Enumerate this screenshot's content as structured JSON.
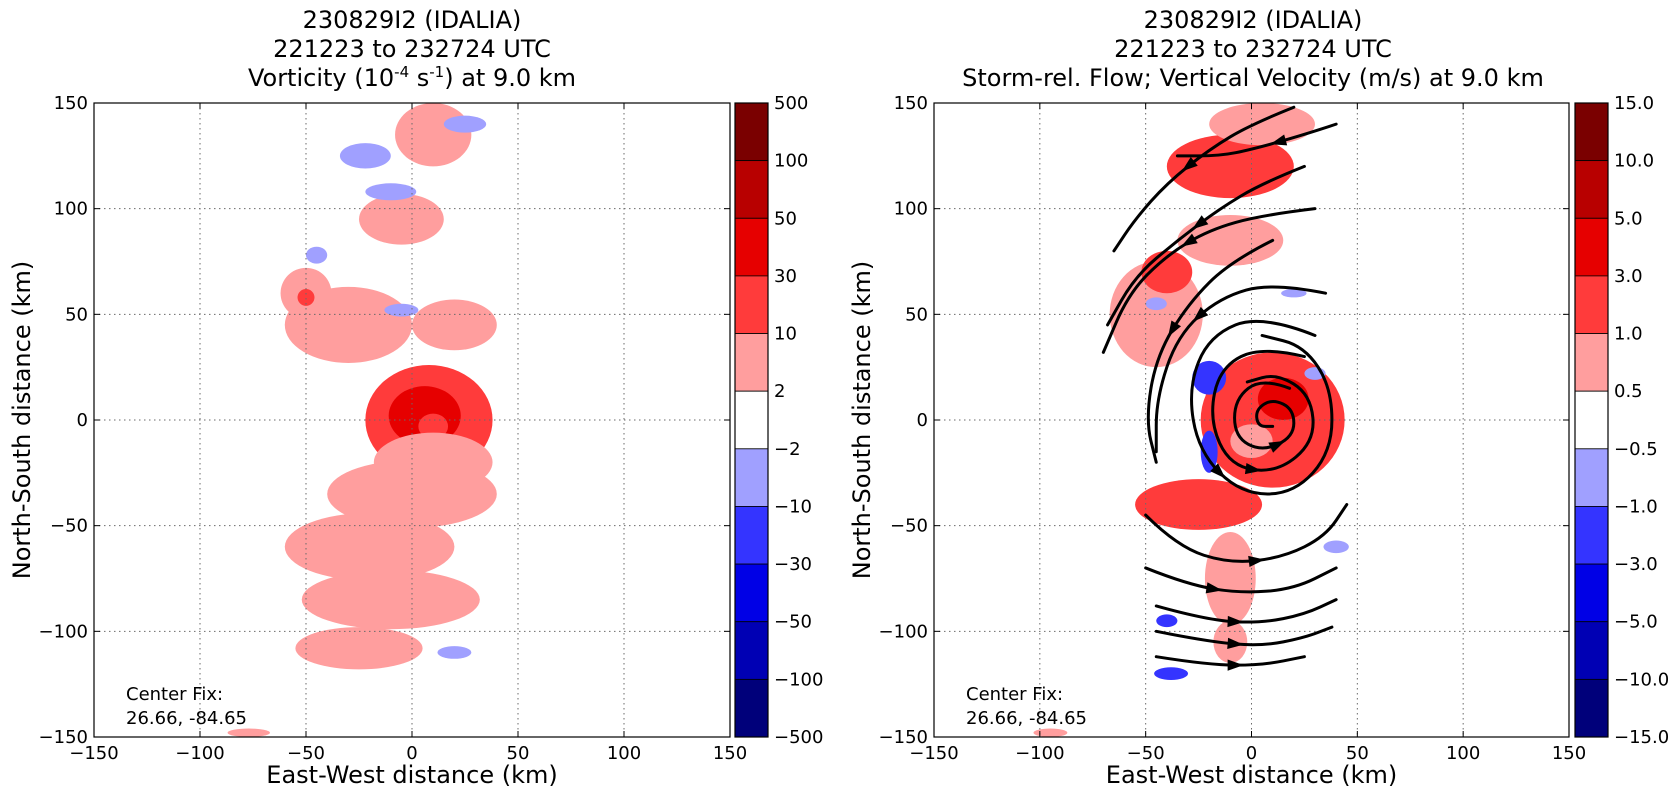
{
  "chart_data": [
    {
      "type": "heatmap",
      "title_lines": [
        "230829I2 (IDALIA)",
        "221223 to 232724 UTC"
      ],
      "title_line3": {
        "pre": "Vorticity (10",
        "sup1": "-4",
        "mid": " s",
        "sup2": "-1",
        "post": ") at 9.0 km"
      },
      "xlabel": "East-West distance (km)",
      "ylabel": "North-South distance (km)",
      "xlim": [
        -150,
        150
      ],
      "ylim": [
        -150,
        150
      ],
      "xticks": [
        -150,
        -100,
        -50,
        0,
        50,
        100,
        150
      ],
      "yticks": [
        -150,
        -100,
        -50,
        0,
        50,
        100,
        150
      ],
      "grid": true,
      "annotation_lines": [
        "Center Fix:",
        "26.66, -84.65"
      ],
      "colorbar": {
        "levels": [
          "500",
          "100",
          "50",
          "30",
          "10",
          "2",
          "−2",
          "−10",
          "−30",
          "−50",
          "−100",
          "−500"
        ],
        "colors": [
          "#7a0000",
          "#b80000",
          "#e60000",
          "#ff3b3b",
          "#ff9e9e",
          "#ffffff",
          "#a0a0ff",
          "#3434ff",
          "#0000e6",
          "#0000b4",
          "#00007a"
        ]
      },
      "blobs": [
        {
          "x": 8,
          "y": 0,
          "rx": 30,
          "ry": 26,
          "level": 3
        },
        {
          "x": 6,
          "y": 2,
          "rx": 17,
          "ry": 14,
          "level": 2
        },
        {
          "x": 10,
          "y": -3,
          "rx": 7,
          "ry": 6,
          "level": 3
        },
        {
          "x": 10,
          "y": -20,
          "rx": 28,
          "ry": 14,
          "level": 4
        },
        {
          "x": 0,
          "y": -35,
          "rx": 40,
          "ry": 16,
          "level": 4
        },
        {
          "x": -20,
          "y": -60,
          "rx": 40,
          "ry": 16,
          "level": 4
        },
        {
          "x": -10,
          "y": -85,
          "rx": 42,
          "ry": 14,
          "level": 4
        },
        {
          "x": -25,
          "y": -108,
          "rx": 30,
          "ry": 10,
          "level": 4
        },
        {
          "x": -30,
          "y": 45,
          "rx": 30,
          "ry": 18,
          "level": 4
        },
        {
          "x": 20,
          "y": 45,
          "rx": 20,
          "ry": 12,
          "level": 4
        },
        {
          "x": -5,
          "y": 95,
          "rx": 20,
          "ry": 12,
          "level": 4
        },
        {
          "x": 10,
          "y": 135,
          "rx": 18,
          "ry": 15,
          "level": 4
        },
        {
          "x": -50,
          "y": 60,
          "rx": 12,
          "ry": 12,
          "level": 4
        },
        {
          "x": -22,
          "y": 125,
          "rx": 12,
          "ry": 6,
          "level": 6
        },
        {
          "x": -10,
          "y": 108,
          "rx": 12,
          "ry": 4,
          "level": 6
        },
        {
          "x": -45,
          "y": 78,
          "rx": 5,
          "ry": 4,
          "level": 6
        },
        {
          "x": 25,
          "y": 140,
          "rx": 10,
          "ry": 4,
          "level": 6
        },
        {
          "x": -5,
          "y": 52,
          "rx": 8,
          "ry": 3,
          "level": 6
        },
        {
          "x": 20,
          "y": -110,
          "rx": 8,
          "ry": 3,
          "level": 6
        },
        {
          "x": -77,
          "y": -148,
          "rx": 10,
          "ry": 2,
          "level": 4
        },
        {
          "x": -50,
          "y": 58,
          "rx": 4,
          "ry": 4,
          "level": 3
        }
      ]
    },
    {
      "type": "heatmap",
      "title_lines": [
        "230829I2 (IDALIA)",
        "221223 to 232724 UTC",
        "Storm-rel. Flow; Vertical Velocity (m/s) at 9.0 km"
      ],
      "xlabel": "East-West distance (km)",
      "ylabel": "North-South distance (km)",
      "xlim": [
        -150,
        150
      ],
      "ylim": [
        -150,
        150
      ],
      "xticks": [
        -150,
        -100,
        -50,
        0,
        50,
        100,
        150
      ],
      "yticks": [
        -150,
        -100,
        -50,
        0,
        50,
        100,
        150
      ],
      "grid": true,
      "annotation_lines": [
        "Center Fix:",
        "26.66, -84.65"
      ],
      "colorbar": {
        "levels": [
          "15.0",
          "10.0",
          "5.0",
          "3.0",
          "1.0",
          "0.5",
          "−0.5",
          "−1.0",
          "−3.0",
          "−5.0",
          "−10.0",
          "−15.0"
        ],
        "colors": [
          "#7a0000",
          "#b80000",
          "#e60000",
          "#ff3b3b",
          "#ff9e9e",
          "#ffffff",
          "#a0a0ff",
          "#3434ff",
          "#0000e6",
          "#0000b4",
          "#00007a"
        ]
      },
      "blobs": [
        {
          "x": 10,
          "y": 0,
          "rx": 34,
          "ry": 32,
          "level": 3
        },
        {
          "x": 15,
          "y": 10,
          "rx": 12,
          "ry": 10,
          "level": 2
        },
        {
          "x": 0,
          "y": -10,
          "rx": 10,
          "ry": 8,
          "level": 4
        },
        {
          "x": -20,
          "y": 20,
          "rx": 8,
          "ry": 8,
          "level": 7
        },
        {
          "x": -20,
          "y": -15,
          "rx": 4,
          "ry": 10,
          "level": 7
        },
        {
          "x": 30,
          "y": 22,
          "rx": 5,
          "ry": 3,
          "level": 6
        },
        {
          "x": -25,
          "y": -40,
          "rx": 30,
          "ry": 12,
          "level": 3
        },
        {
          "x": -45,
          "y": 50,
          "rx": 22,
          "ry": 25,
          "level": 4
        },
        {
          "x": -40,
          "y": 70,
          "rx": 12,
          "ry": 10,
          "level": 3
        },
        {
          "x": -10,
          "y": 85,
          "rx": 25,
          "ry": 12,
          "level": 4
        },
        {
          "x": -10,
          "y": 120,
          "rx": 30,
          "ry": 15,
          "level": 3
        },
        {
          "x": 5,
          "y": 140,
          "rx": 25,
          "ry": 10,
          "level": 4
        },
        {
          "x": -10,
          "y": -75,
          "rx": 12,
          "ry": 22,
          "level": 4
        },
        {
          "x": -10,
          "y": -105,
          "rx": 8,
          "ry": 10,
          "level": 4
        },
        {
          "x": -40,
          "y": -95,
          "rx": 5,
          "ry": 3,
          "level": 7
        },
        {
          "x": -38,
          "y": -120,
          "rx": 8,
          "ry": 3,
          "level": 7
        },
        {
          "x": 40,
          "y": -60,
          "rx": 6,
          "ry": 3,
          "level": 6
        },
        {
          "x": -45,
          "y": 55,
          "rx": 5,
          "ry": 3,
          "level": 6
        },
        {
          "x": 20,
          "y": 60,
          "rx": 6,
          "ry": 2,
          "level": 6
        },
        {
          "x": -95,
          "y": -148,
          "rx": 8,
          "ry": 2,
          "level": 4
        }
      ],
      "streamlines": [
        [
          [
            20,
            148
          ],
          [
            0,
            140
          ],
          [
            -20,
            128
          ],
          [
            -40,
            112
          ],
          [
            -55,
            95
          ],
          [
            -65,
            80
          ]
        ],
        [
          [
            25,
            120
          ],
          [
            5,
            112
          ],
          [
            -15,
            100
          ],
          [
            -35,
            85
          ],
          [
            -55,
            68
          ],
          [
            -68,
            45
          ]
        ],
        [
          [
            40,
            140
          ],
          [
            25,
            135
          ],
          [
            0,
            128
          ],
          [
            -15,
            125
          ],
          [
            -35,
            125
          ]
        ],
        [
          [
            30,
            100
          ],
          [
            5,
            97
          ],
          [
            -20,
            90
          ],
          [
            -40,
            78
          ],
          [
            -58,
            60
          ],
          [
            -70,
            32
          ]
        ],
        [
          [
            10,
            85
          ],
          [
            -10,
            75
          ],
          [
            -30,
            55
          ],
          [
            -45,
            30
          ],
          [
            -50,
            0
          ],
          [
            -45,
            -20
          ]
        ],
        [
          [
            35,
            60
          ],
          [
            10,
            65
          ],
          [
            -15,
            58
          ],
          [
            -35,
            40
          ],
          [
            -45,
            10
          ],
          [
            -45,
            -15
          ]
        ],
        [
          [
            30,
            40
          ],
          [
            5,
            50
          ],
          [
            -20,
            40
          ],
          [
            -30,
            15
          ],
          [
            -25,
            -15
          ],
          [
            -5,
            -35
          ],
          [
            20,
            -35
          ],
          [
            38,
            -15
          ],
          [
            38,
            15
          ],
          [
            25,
            35
          ],
          [
            5,
            40
          ]
        ],
        [
          [
            25,
            30
          ],
          [
            5,
            35
          ],
          [
            -15,
            25
          ],
          [
            -20,
            0
          ],
          [
            -10,
            -22
          ],
          [
            12,
            -25
          ],
          [
            30,
            -10
          ],
          [
            28,
            12
          ],
          [
            12,
            22
          ],
          [
            -2,
            18
          ]
        ],
        [
          [
            18,
            15
          ],
          [
            5,
            20
          ],
          [
            -8,
            10
          ],
          [
            -8,
            -8
          ],
          [
            5,
            -15
          ],
          [
            20,
            -8
          ],
          [
            20,
            5
          ],
          [
            10,
            10
          ],
          [
            2,
            5
          ],
          [
            3,
            -3
          ],
          [
            10,
            -3
          ]
        ],
        [
          [
            -50,
            -45
          ],
          [
            -35,
            -60
          ],
          [
            -10,
            -68
          ],
          [
            15,
            -65
          ],
          [
            35,
            -55
          ],
          [
            45,
            -40
          ]
        ],
        [
          [
            -50,
            -70
          ],
          [
            -30,
            -78
          ],
          [
            -5,
            -82
          ],
          [
            20,
            -80
          ],
          [
            40,
            -70
          ]
        ],
        [
          [
            -45,
            -88
          ],
          [
            -20,
            -95
          ],
          [
            5,
            -96
          ],
          [
            25,
            -92
          ],
          [
            40,
            -85
          ]
        ],
        [
          [
            -45,
            -100
          ],
          [
            -20,
            -105
          ],
          [
            5,
            -107
          ],
          [
            25,
            -103
          ],
          [
            38,
            -98
          ]
        ],
        [
          [
            -45,
            -112
          ],
          [
            -20,
            -116
          ],
          [
            5,
            -116
          ],
          [
            25,
            -112
          ]
        ]
      ]
    }
  ]
}
